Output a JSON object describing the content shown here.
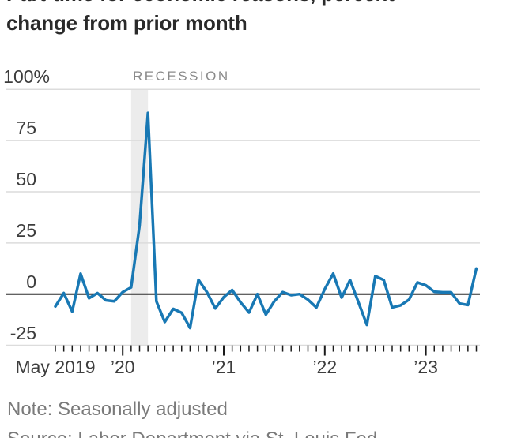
{
  "title": {
    "line1": "Part-time for economic reasons, percent",
    "line2": "change from prior month"
  },
  "recession_label": "RECESSION",
  "note": "Note: Seasonally adjusted",
  "source": "Source: Labor Department via St. Louis Fed",
  "colors": {
    "line": "#1878b4",
    "gridline": "#dcdcdc",
    "zero_line": "#2e2e2e",
    "tick": "#1a1a1a",
    "recession_band": "#ececec",
    "axis_label": "#3d3d3d",
    "title_text": "#2a2a2a",
    "muted_text": "#7a7a7a"
  },
  "chart_data": {
    "type": "line",
    "title": "Part-time for economic reasons, percent change from prior month",
    "xlabel": "",
    "ylabel": "percent change from prior month",
    "ylim": [
      -25,
      100
    ],
    "grid": true,
    "legend_position": "none",
    "line_color": "#1878b4",
    "y_ticks": [
      {
        "value": 100,
        "label": "100%"
      },
      {
        "value": 75,
        "label": "75"
      },
      {
        "value": 50,
        "label": "50"
      },
      {
        "value": 25,
        "label": "25"
      },
      {
        "value": 0,
        "label": "0"
      },
      {
        "value": -25,
        "label": "-25"
      }
    ],
    "x_ticks": [
      {
        "month_index": 0,
        "label": "May 2019",
        "major": false
      },
      {
        "month_index": 8,
        "label": "’20",
        "major": true
      },
      {
        "month_index": 20,
        "label": "’21",
        "major": true
      },
      {
        "month_index": 32,
        "label": "’22",
        "major": true
      },
      {
        "month_index": 44,
        "label": "’23",
        "major": true
      }
    ],
    "recession_band": {
      "start_month_index": 9,
      "end_month_index": 11,
      "label": "RECESSION"
    },
    "x": [
      "May 2019",
      "Jun 2019",
      "Jul 2019",
      "Aug 2019",
      "Sep 2019",
      "Oct 2019",
      "Nov 2019",
      "Dec 2019",
      "Jan 2020",
      "Feb 2020",
      "Mar 2020",
      "Apr 2020",
      "May 2020",
      "Jun 2020",
      "Jul 2020",
      "Aug 2020",
      "Sep 2020",
      "Oct 2020",
      "Nov 2020",
      "Dec 2020",
      "Jan 2021",
      "Feb 2021",
      "Mar 2021",
      "Apr 2021",
      "May 2021",
      "Jun 2021",
      "Jul 2021",
      "Aug 2021",
      "Sep 2021",
      "Oct 2021",
      "Nov 2021",
      "Dec 2021",
      "Jan 2022",
      "Feb 2022",
      "Mar 2022",
      "Apr 2022",
      "May 2022",
      "Jun 2022",
      "Jul 2022",
      "Aug 2022",
      "Sep 2022",
      "Oct 2022",
      "Nov 2022",
      "Dec 2022",
      "Jan 2023",
      "Feb 2023",
      "Mar 2023",
      "Apr 2023",
      "May 2023",
      "Jun 2023",
      "Jul 2023"
    ],
    "series": [
      {
        "name": "Part-time for economic reasons, % change from prior month",
        "values": [
          -6,
          0.5,
          -8.5,
          10,
          -2,
          0.5,
          -3,
          -3.5,
          1,
          3.3,
          33.5,
          88.5,
          -3.5,
          -13.6,
          -7.2,
          -9.1,
          -16.5,
          7,
          1,
          -7,
          -1.5,
          2,
          -4,
          -9,
          0,
          -10,
          -3.5,
          1,
          -0.5,
          0,
          -2.7,
          -6.5,
          2.5,
          10,
          -1.7,
          6.9,
          -4,
          -15,
          8.8,
          6.9,
          -6.5,
          -5.5,
          -2.7,
          5.7,
          4.3,
          1.2,
          0.9,
          0.9,
          -4.6,
          -5.3,
          12.5
        ]
      }
    ]
  }
}
